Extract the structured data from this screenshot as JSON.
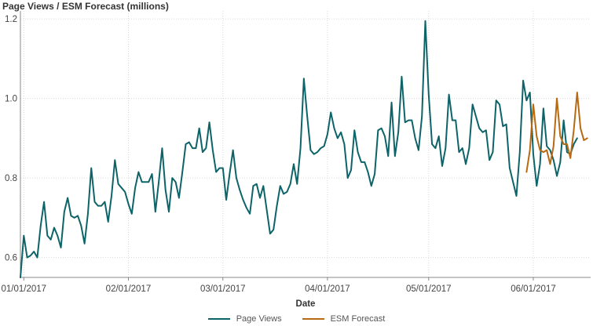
{
  "chart_data": {
    "type": "line",
    "title": "",
    "ylabel": "Page Views / ESM Forecast (millions)",
    "xlabel": "Date",
    "ylim": [
      0.55,
      1.22
    ],
    "y_ticks": [
      0.6,
      0.8,
      1.0,
      1.2
    ],
    "y_tick_labels": [
      "0.6",
      "0.8",
      "1.0",
      "1.2"
    ],
    "x_start": "2016-12-31",
    "x_range": [
      "2016-12-31",
      "2017-06-18"
    ],
    "x_ticks": [
      "2017-01-01",
      "2017-02-01",
      "2017-03-01",
      "2017-04-01",
      "2017-05-01",
      "2017-06-01"
    ],
    "x_tick_labels": [
      "01/01/2017",
      "02/01/2017",
      "03/01/2017",
      "04/01/2017",
      "05/01/2017",
      "06/01/2017"
    ],
    "grid": true,
    "legend_position": "bottom",
    "series": [
      {
        "name": "Page Views",
        "color": "#0d6468",
        "values": [
          0.55,
          0.655,
          0.6,
          0.605,
          0.615,
          0.6,
          0.68,
          0.74,
          0.655,
          0.645,
          0.675,
          0.655,
          0.625,
          0.715,
          0.75,
          0.705,
          0.7,
          0.705,
          0.68,
          0.635,
          0.71,
          0.825,
          0.74,
          0.73,
          0.73,
          0.74,
          0.69,
          0.755,
          0.845,
          0.785,
          0.775,
          0.765,
          0.735,
          0.71,
          0.775,
          0.815,
          0.79,
          0.79,
          0.79,
          0.81,
          0.715,
          0.79,
          0.875,
          0.77,
          0.715,
          0.8,
          0.79,
          0.75,
          0.815,
          0.885,
          0.89,
          0.875,
          0.875,
          0.925,
          0.865,
          0.875,
          0.94,
          0.87,
          0.815,
          0.825,
          0.825,
          0.745,
          0.81,
          0.87,
          0.8,
          0.77,
          0.745,
          0.725,
          0.71,
          0.78,
          0.785,
          0.75,
          0.78,
          0.72,
          0.66,
          0.67,
          0.73,
          0.78,
          0.76,
          0.765,
          0.785,
          0.835,
          0.785,
          0.875,
          1.05,
          0.955,
          0.87,
          0.86,
          0.865,
          0.875,
          0.88,
          0.91,
          0.965,
          0.925,
          0.9,
          0.915,
          0.885,
          0.8,
          0.82,
          0.92,
          0.865,
          0.84,
          0.84,
          0.815,
          0.78,
          0.81,
          0.92,
          0.925,
          0.905,
          0.855,
          0.99,
          0.855,
          0.915,
          1.055,
          0.94,
          0.945,
          0.945,
          0.9,
          0.87,
          0.955,
          1.195,
          1.01,
          0.885,
          0.875,
          0.905,
          0.83,
          0.875,
          1.01,
          0.945,
          0.945,
          0.865,
          0.875,
          0.835,
          0.875,
          0.985,
          0.955,
          0.925,
          0.915,
          0.92,
          0.845,
          0.865,
          0.995,
          0.985,
          0.93,
          0.935,
          0.825,
          0.79,
          0.755,
          0.865,
          1.045,
          0.995,
          1.015,
          0.86,
          0.78,
          0.835,
          0.975,
          0.88,
          0.87,
          0.845,
          0.805,
          0.84,
          0.945,
          0.865,
          0.86,
          0.885,
          0.9
        ]
      },
      {
        "name": "ESM Forecast",
        "color": "#b86a12",
        "x_start_index": 150,
        "values": [
          0.815,
          0.87,
          0.985,
          0.905,
          0.87,
          0.865,
          0.87,
          0.835,
          0.88,
          1.0,
          0.905,
          0.885,
          0.885,
          0.85,
          0.92,
          1.015,
          0.925,
          0.895,
          0.9
        ]
      }
    ]
  }
}
